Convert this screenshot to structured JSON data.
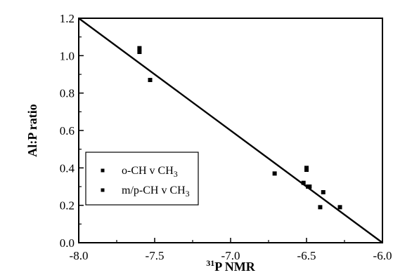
{
  "chart_data": {
    "type": "scatter",
    "xlabel_sup": "31",
    "xlabel_main": "P NMR",
    "ylabel": "Al:P ratio",
    "xlim": [
      -8.0,
      -6.0
    ],
    "ylim": [
      0.0,
      1.2
    ],
    "xticks": [
      "-8.0",
      "-7.5",
      "-7.0",
      "-6.5",
      "-6.0"
    ],
    "yticks": [
      "0.0",
      "0.2",
      "0.4",
      "0.6",
      "0.8",
      "1.0",
      "1.2"
    ],
    "grid": false,
    "legend_position": "bottom-left",
    "series": [
      {
        "name_main": "o-CH v CH",
        "name_sub": "3",
        "marker": "square",
        "color": "#000000",
        "points": [
          [
            -7.6,
            1.04
          ],
          [
            -7.6,
            1.02
          ],
          [
            -7.53,
            0.87
          ],
          [
            -6.71,
            0.37
          ],
          [
            -6.52,
            0.32
          ],
          [
            -6.5,
            0.4
          ],
          [
            -6.49,
            0.3
          ]
        ]
      },
      {
        "name_main": "m/p-CH v CH",
        "name_sub": "3",
        "marker": "square",
        "color": "#000000",
        "points": [
          [
            -6.5,
            0.39
          ],
          [
            -6.48,
            0.3
          ],
          [
            -6.41,
            0.19
          ],
          [
            -6.39,
            0.27
          ],
          [
            -6.28,
            0.19
          ]
        ]
      }
    ],
    "fit_line": {
      "x": [
        -8.0,
        -6.0
      ],
      "y": [
        1.2,
        0.0
      ]
    }
  }
}
